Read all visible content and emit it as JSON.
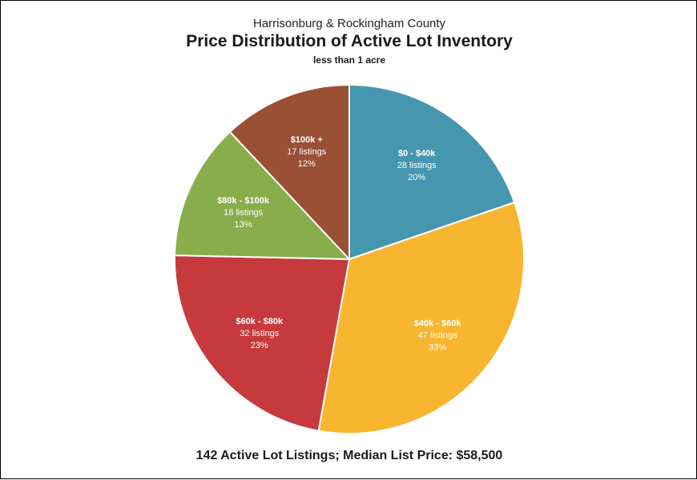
{
  "chart_data": {
    "type": "pie",
    "supertitle": "Harrisonburg & Rockingham County",
    "title": "Price Distribution of Active Lot Inventory",
    "subtitle": "less than 1 acre",
    "footer": "142 Active Lot Listings;  Median List Price: $58,500",
    "slices": [
      {
        "category": "$0 - $40k",
        "value": 28,
        "listings_label": "28 listings",
        "percent_label": "20%",
        "color": "#4596AE"
      },
      {
        "category": "$40k - $60k",
        "value": 47,
        "listings_label": "47 listings",
        "percent_label": "33%",
        "color": "#F8B530"
      },
      {
        "category": "$60k - $80k",
        "value": 32,
        "listings_label": "32 listings",
        "percent_label": "23%",
        "color": "#C6393D"
      },
      {
        "category": "$80k - $100k",
        "value": 18,
        "listings_label": "18 listings",
        "percent_label": "13%",
        "color": "#88AD4B"
      },
      {
        "category": "$100k +",
        "value": 17,
        "listings_label": "17 listings",
        "percent_label": "12%",
        "color": "#9A5035"
      }
    ]
  }
}
